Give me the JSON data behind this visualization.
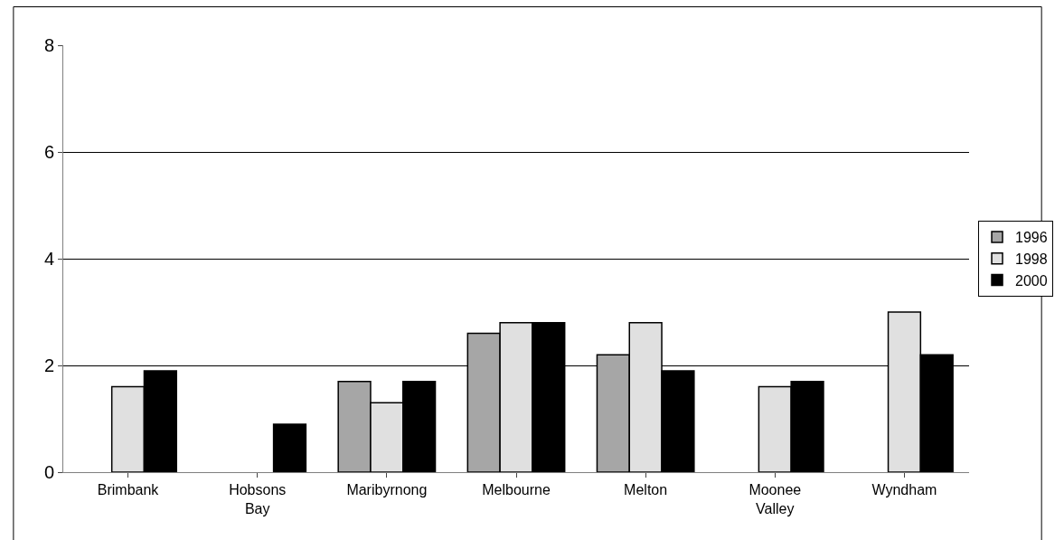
{
  "chart_data": {
    "type": "bar",
    "categories": [
      "Brimbank",
      "Hobsons Bay",
      "Maribyrnong",
      "Melbourne",
      "Melton",
      "Moonee Valley",
      "Wyndham"
    ],
    "series": [
      {
        "name": "1996",
        "color": "#a6a6a6",
        "values": [
          null,
          null,
          1.7,
          2.6,
          2.2,
          null,
          null
        ]
      },
      {
        "name": "1998",
        "color": "#e0e0e0",
        "values": [
          1.6,
          null,
          1.3,
          2.8,
          2.8,
          1.6,
          3.0
        ]
      },
      {
        "name": "2000",
        "color": "#000000",
        "values": [
          1.9,
          0.9,
          1.7,
          2.8,
          1.9,
          1.7,
          2.2
        ]
      }
    ],
    "ylim": [
      0,
      8
    ],
    "yticks": [
      0,
      2,
      4,
      6,
      8
    ],
    "grid": "y",
    "legend": "right"
  }
}
